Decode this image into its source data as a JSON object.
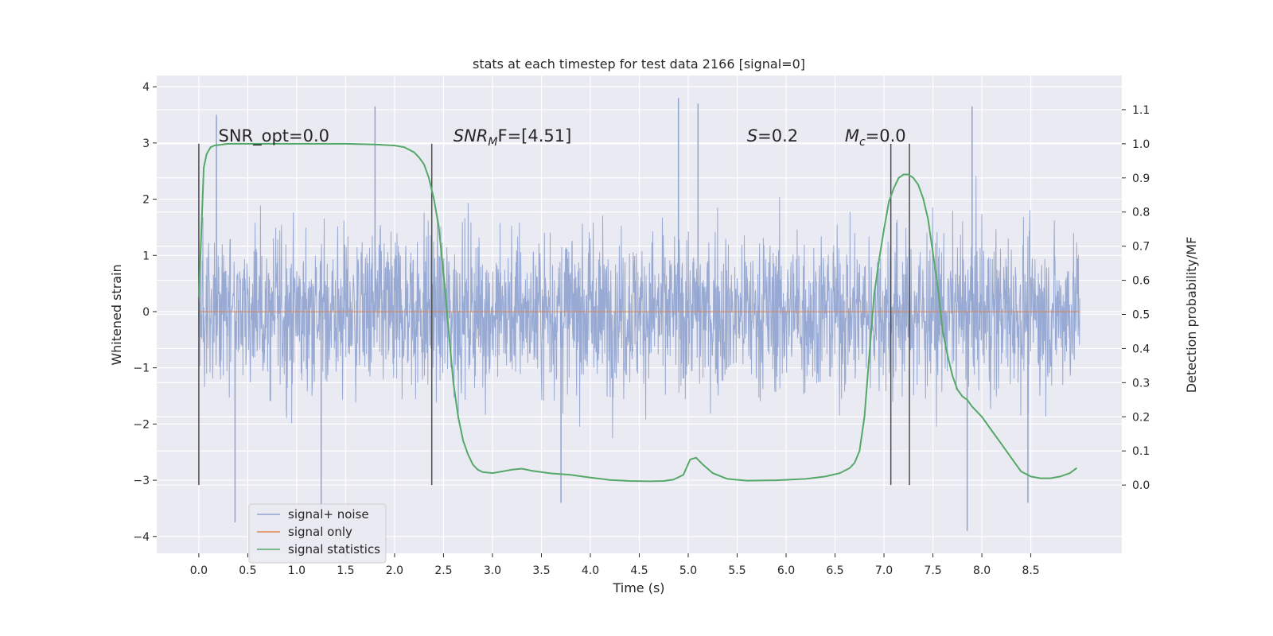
{
  "chart_data": {
    "type": "line",
    "title": "stats at each timestep for test data 2166 [signal=0]",
    "xlabel": "Time (s)",
    "ylabel_left": "Whitened strain",
    "ylabel_right": "Detection probability/MF",
    "xlim": [
      -0.43,
      9.43
    ],
    "ylim_left": [
      -4.3,
      4.2
    ],
    "ylim_right": [
      -0.2,
      1.2
    ],
    "x_ticks": [
      0.0,
      0.5,
      1.0,
      1.5,
      2.0,
      2.5,
      3.0,
      3.5,
      4.0,
      4.5,
      5.0,
      5.5,
      6.0,
      6.5,
      7.0,
      7.5,
      8.0,
      8.5
    ],
    "x_tick_labels": [
      "0.0",
      "0.5",
      "1.0",
      "1.5",
      "2.0",
      "2.5",
      "3.0",
      "3.5",
      "4.0",
      "4.5",
      "5.0",
      "5.5",
      "6.0",
      "6.5",
      "7.0",
      "7.5",
      "8.0",
      "8.5"
    ],
    "y_left_ticks": [
      -4,
      -3,
      -2,
      -1,
      0,
      1,
      2,
      3,
      4
    ],
    "y_left_tick_labels": [
      "−4",
      "−3",
      "−2",
      "−1",
      "0",
      "1",
      "2",
      "3",
      "4"
    ],
    "y_right_ticks": [
      0.0,
      0.1,
      0.2,
      0.3,
      0.4,
      0.5,
      0.6,
      0.7,
      0.8,
      0.9,
      1.0,
      1.1
    ],
    "y_right_tick_labels": [
      "0.0",
      "0.1",
      "0.2",
      "0.3",
      "0.4",
      "0.5",
      "0.6",
      "0.7",
      "0.8",
      "0.9",
      "1.0",
      "1.1"
    ],
    "grid": true,
    "legend_position": "bottom-left",
    "colors": {
      "background": "#eaeaf2",
      "grid": "#ffffff",
      "noise": "#8fa3cf",
      "signal": "#dd8452",
      "stats": "#55a868",
      "markers": "#4d4d4d"
    },
    "series": [
      {
        "name": "signal+ noise",
        "axis": "left",
        "x_range": [
          0.0,
          9.0
        ],
        "description_envelope": {
          "typical_range": [
            -1.9,
            2.2
          ],
          "peaks": [
            {
              "x": 0.18,
              "y": 3.5
            },
            {
              "x": 1.8,
              "y": 3.65
            },
            {
              "x": 4.9,
              "y": 3.8
            },
            {
              "x": 5.1,
              "y": 3.7
            },
            {
              "x": 7.9,
              "y": 3.65
            },
            {
              "x": 0.37,
              "y": -3.75
            },
            {
              "x": 1.25,
              "y": -3.55
            },
            {
              "x": 3.7,
              "y": -3.4
            },
            {
              "x": 7.85,
              "y": -3.9
            },
            {
              "x": 8.47,
              "y": -3.4
            }
          ]
        }
      },
      {
        "name": "signal only",
        "axis": "left",
        "x": [
          0.0,
          9.0
        ],
        "y": [
          0.0,
          0.0
        ]
      },
      {
        "name": "signal statistics",
        "axis": "right",
        "x": [
          0.0,
          0.02,
          0.05,
          0.08,
          0.12,
          0.16,
          0.3,
          0.6,
          1.0,
          1.5,
          1.8,
          2.0,
          2.1,
          2.2,
          2.25,
          2.3,
          2.35,
          2.4,
          2.45,
          2.5,
          2.55,
          2.6,
          2.65,
          2.7,
          2.75,
          2.8,
          2.85,
          2.9,
          3.0,
          3.1,
          3.2,
          3.3,
          3.4,
          3.6,
          3.8,
          4.0,
          4.2,
          4.4,
          4.6,
          4.75,
          4.85,
          4.95,
          5.02,
          5.08,
          5.15,
          5.25,
          5.4,
          5.6,
          5.9,
          6.2,
          6.4,
          6.55,
          6.65,
          6.7,
          6.75,
          6.8,
          6.85,
          6.9,
          6.95,
          7.0,
          7.05,
          7.1,
          7.15,
          7.2,
          7.25,
          7.3,
          7.35,
          7.4,
          7.45,
          7.5,
          7.55,
          7.6,
          7.65,
          7.7,
          7.75,
          7.8,
          7.85,
          7.9,
          8.0,
          8.1,
          8.2,
          8.3,
          8.4,
          8.5,
          8.6,
          8.7,
          8.8,
          8.9,
          8.97
        ],
        "y": [
          0.55,
          0.7,
          0.93,
          0.97,
          0.99,
          0.995,
          1.0,
          1.0,
          1.0,
          1.0,
          0.998,
          0.995,
          0.99,
          0.975,
          0.96,
          0.94,
          0.9,
          0.84,
          0.76,
          0.62,
          0.46,
          0.3,
          0.2,
          0.13,
          0.09,
          0.06,
          0.045,
          0.038,
          0.035,
          0.04,
          0.045,
          0.048,
          0.042,
          0.034,
          0.03,
          0.022,
          0.015,
          0.012,
          0.011,
          0.012,
          0.016,
          0.03,
          0.075,
          0.08,
          0.06,
          0.035,
          0.018,
          0.013,
          0.014,
          0.018,
          0.025,
          0.035,
          0.05,
          0.065,
          0.1,
          0.2,
          0.38,
          0.56,
          0.66,
          0.75,
          0.83,
          0.87,
          0.9,
          0.91,
          0.91,
          0.9,
          0.88,
          0.84,
          0.78,
          0.68,
          0.58,
          0.45,
          0.38,
          0.32,
          0.28,
          0.26,
          0.25,
          0.23,
          0.2,
          0.16,
          0.12,
          0.08,
          0.04,
          0.025,
          0.02,
          0.02,
          0.025,
          0.035,
          0.05
        ]
      }
    ],
    "vertical_markers": [
      0.0,
      2.38,
      7.07,
      7.26
    ],
    "annotations": [
      {
        "text": "SNR_opt=0.0",
        "x": 0.2,
        "y": 3.0
      },
      {
        "text_main": "SNR",
        "text_sub": "M",
        "text_rest": "F=[4.51]",
        "x": 2.6,
        "y": 3.0
      },
      {
        "text_main": "S",
        "text_rest": "=0.2",
        "x": 5.6,
        "y": 3.0
      },
      {
        "text_main": "M",
        "text_sub": "c",
        "text_rest": "=0.0",
        "x": 6.6,
        "y": 3.0
      }
    ]
  }
}
